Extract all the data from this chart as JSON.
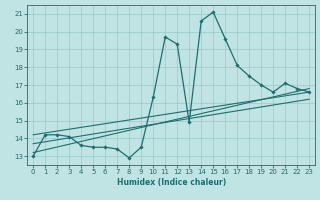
{
  "xlabel": "Humidex (Indice chaleur)",
  "xlim": [
    -0.5,
    23.5
  ],
  "ylim": [
    12.5,
    21.5
  ],
  "xticks": [
    0,
    1,
    2,
    3,
    4,
    5,
    6,
    7,
    8,
    9,
    10,
    11,
    12,
    13,
    14,
    15,
    16,
    17,
    18,
    19,
    20,
    21,
    22,
    23
  ],
  "yticks": [
    13,
    14,
    15,
    16,
    17,
    18,
    19,
    20,
    21
  ],
  "bg_color": "#c0e4e4",
  "grid_color": "#9bcfcf",
  "line_color": "#1a7070",
  "main_line": {
    "x": [
      0,
      1,
      2,
      3,
      4,
      5,
      6,
      7,
      8,
      9,
      10,
      11,
      12,
      13,
      14,
      15,
      16,
      17,
      18,
      19,
      20,
      21,
      22,
      23
    ],
    "y": [
      13.0,
      14.2,
      14.2,
      14.1,
      13.6,
      13.5,
      13.5,
      13.4,
      12.9,
      13.5,
      16.3,
      19.7,
      19.3,
      14.9,
      20.6,
      21.1,
      19.6,
      18.1,
      17.5,
      17.0,
      16.6,
      17.1,
      16.8,
      16.6
    ]
  },
  "trend_lines": [
    {
      "x": [
        0,
        23
      ],
      "y": [
        13.2,
        16.8
      ]
    },
    {
      "x": [
        0,
        23
      ],
      "y": [
        14.2,
        16.6
      ]
    },
    {
      "x": [
        0,
        23
      ],
      "y": [
        13.7,
        16.2
      ]
    }
  ],
  "tick_fontsize": 5,
  "xlabel_fontsize": 5.5
}
